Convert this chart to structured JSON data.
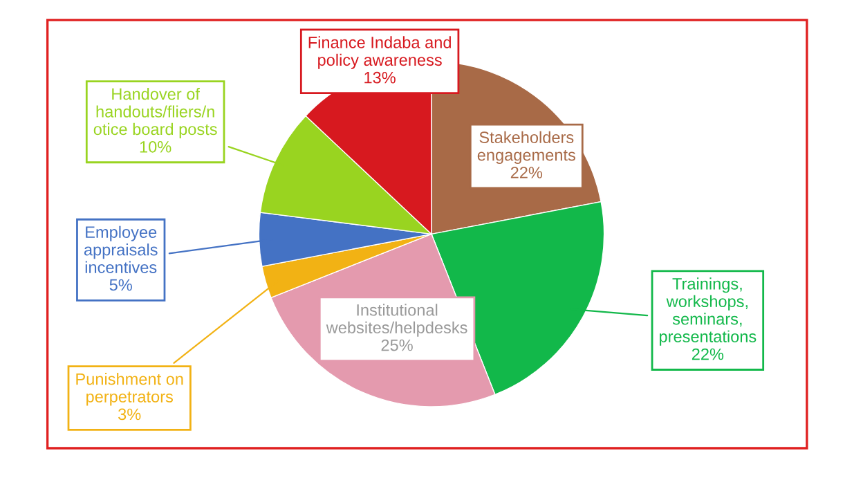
{
  "chart_data": {
    "type": "pie",
    "categories": [
      "Stakeholders\nengagements",
      "Trainings,\nworkshops,\nseminars,\npresentations",
      "Institutional\nwebsites/helpdesks",
      "Punishment on\nperpetrators",
      "Employee\nappraisals\nincentives",
      "Handover of\nhandouts/fliers/n\notice board posts",
      "Finance Indaba and\npolicy awareness"
    ],
    "values": [
      22,
      22,
      25,
      3,
      5,
      10,
      13
    ],
    "value_labels": [
      "22%",
      "22%",
      "25%",
      "3%",
      "5%",
      "10%",
      "13%"
    ],
    "colors": [
      "#a86a47",
      "#12b84a",
      "#e49aae",
      "#f2b214",
      "#4472c4",
      "#99d420",
      "#d7191f"
    ],
    "legend": false
  }
}
